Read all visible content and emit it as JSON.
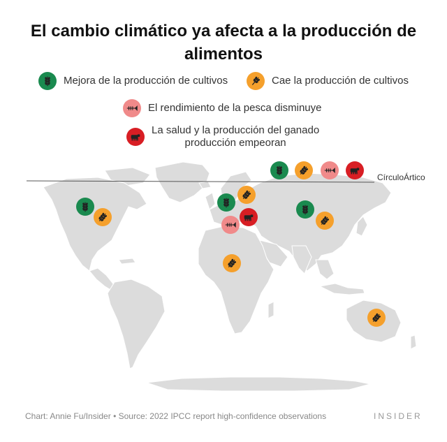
{
  "title": "El cambio climático ya afecta a la producción de alimentos",
  "legend": [
    {
      "id": "crop-up",
      "label": "Mejora de la producción de cultivos",
      "color": "#1a8a4f",
      "icon": "wheat-icon"
    },
    {
      "id": "crop-down",
      "label": "Cae la producción de cultivos",
      "color": "#f5a02c",
      "icon": "wheat-icon"
    },
    {
      "id": "fish-down",
      "label": "El rendimiento de la pesca disminuye",
      "color": "#f08a8a",
      "icon": "fish-icon"
    },
    {
      "id": "livestock-down",
      "label": "La salud y la producción del ganado producción empeoran",
      "label_lines": [
        "La salud y la producción del ganado",
        "producción empeoran"
      ],
      "color": "#d81e24",
      "icon": "cow-icon"
    }
  ],
  "arctic_label": "CírculoÁrtico",
  "markers": [
    {
      "region": "Arctic",
      "type": "crop-up"
    },
    {
      "region": "Arctic",
      "type": "crop-down"
    },
    {
      "region": "Arctic",
      "type": "fish-down"
    },
    {
      "region": "Arctic",
      "type": "livestock-down"
    },
    {
      "region": "North America",
      "type": "crop-up"
    },
    {
      "region": "North America",
      "type": "crop-down"
    },
    {
      "region": "Europe",
      "type": "crop-up"
    },
    {
      "region": "Europe",
      "type": "crop-down"
    },
    {
      "region": "Mediterranean",
      "type": "livestock-down"
    },
    {
      "region": "Mediterranean",
      "type": "fish-down"
    },
    {
      "region": "Asia",
      "type": "crop-up"
    },
    {
      "region": "Asia",
      "type": "crop-down"
    },
    {
      "region": "Africa",
      "type": "crop-down"
    },
    {
      "region": "Australia",
      "type": "crop-down"
    }
  ],
  "footer": "Chart: Annie Fu/Insider • Source: 2022 IPCC report high-confidence observations",
  "brand": "INSIDER",
  "colors": {
    "land": "#dcdcdc",
    "coast": "#ffffff",
    "line": "#555555"
  }
}
